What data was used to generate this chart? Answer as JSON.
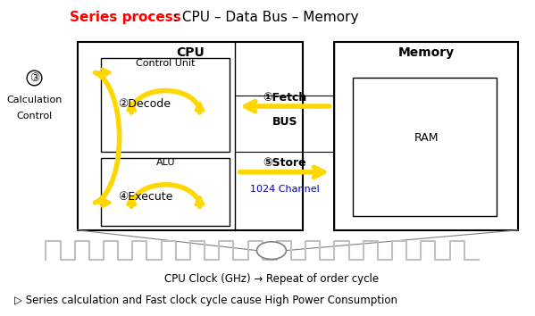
{
  "title_red": "Series process",
  "title_black": " : CPU – Data Bus – Memory",
  "cpu_label": "CPU",
  "memory_label": "Memory",
  "control_unit_label": "Control Unit",
  "alu_label": "ALU",
  "ram_label": "RAM",
  "bus_label": "BUS",
  "channel_label": "1024 Channel",
  "fetch_label": "①Fetch",
  "store_label": "⑤Store",
  "decode_label": "②Decode",
  "execute_label": "④Execute",
  "calc_label3": "③",
  "calc_label3_text1": "Calculation",
  "calc_label3_text2": "Control",
  "clock_label": "CPU Clock (GHz) → Repeat of order cycle",
  "bottom_label": "▷ Series calculation and Fast clock cycle cause High Power Consumption",
  "yellow": "#FFD700",
  "blue": "#0000CD",
  "red": "#FF0000",
  "black": "#000000",
  "white": "#FFFFFF",
  "gray": "#808080",
  "lightgray": "#C0C0C0"
}
